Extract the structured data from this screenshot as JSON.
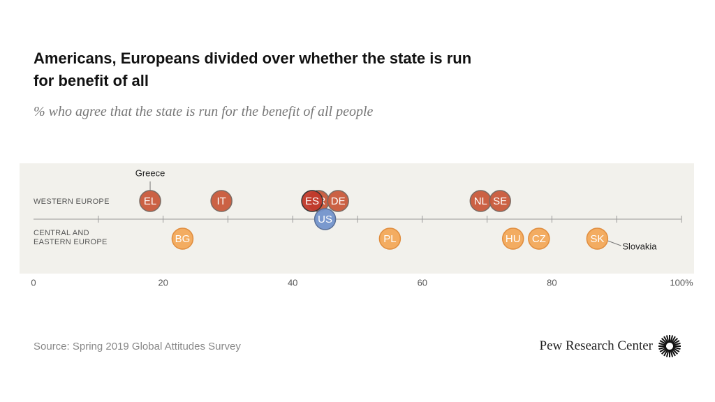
{
  "chart_data": {
    "type": "dot",
    "title": "Americans, Europeans divided over whether the state is run for benefit of all",
    "subtitle": "% who agree that the state is run for the benefit of all people",
    "xlim": [
      0,
      100
    ],
    "xticks": [
      0,
      20,
      40,
      60,
      80,
      {
        "value": 100,
        "label": "100%"
      }
    ],
    "xminorticks": [
      10,
      30,
      50,
      70,
      90
    ],
    "series": [
      {
        "name": "WESTERN EUROPE",
        "color": "#c8593b",
        "labels": [
          "EL",
          "IT",
          "FR",
          "ES",
          "DE",
          "NL",
          "SE"
        ],
        "values": [
          18,
          29,
          44,
          43,
          47,
          69,
          72
        ]
      },
      {
        "color": "#7394cc",
        "labels": [
          "US"
        ],
        "values": [
          45
        ]
      },
      {
        "name": "CENTRAL AND EASTERN EUROPE",
        "color": "#f2a85a",
        "labels": [
          "BG",
          "PL",
          "HU",
          "CZ",
          "SK"
        ],
        "values": [
          23,
          55,
          74,
          78,
          87
        ]
      }
    ],
    "annotations": {
      "EL": "Greece",
      "SK": "Slovakia"
    },
    "source": "Source: Spring 2019 Global Attitudes Survey",
    "brand": "Pew Research Center"
  }
}
